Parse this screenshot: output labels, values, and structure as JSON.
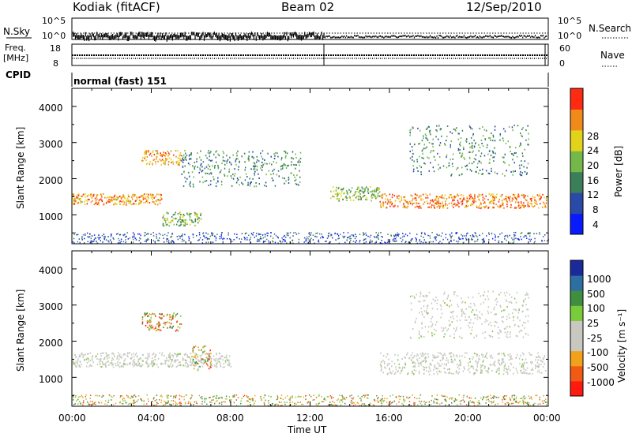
{
  "header": {
    "station": "Kodiak (fitACF)",
    "beam": "Beam 02",
    "date": "12/Sep/2010"
  },
  "nsky_panel": {
    "left_label": "N.Sky",
    "left_ticks": [
      "10^5",
      "10^0"
    ],
    "right_ticks": [
      "10^5",
      "10^0"
    ],
    "right_label": "N.Search"
  },
  "freq_panel": {
    "left_label_1": "Freq.",
    "left_label_2": "[MHz]",
    "left_ticks": [
      "18",
      "8"
    ],
    "right_ticks": [
      "60",
      "0"
    ],
    "right_label": "Nave"
  },
  "cpid_panel": {
    "label": "CPID",
    "mode": "normal (fast) 151"
  },
  "x_axis": {
    "ticks": [
      "00:00",
      "04:00",
      "08:00",
      "12:00",
      "16:00",
      "20:00",
      "00:00"
    ],
    "label": "Time UT"
  },
  "power_panel": {
    "ylabel": "Slant Range [km]",
    "yticks": [
      "4000",
      "3000",
      "2000",
      "1000"
    ],
    "colorbar_label": "Power [dB]",
    "colorbar_ticks": [
      "28",
      "24",
      "20",
      "16",
      "12",
      "8",
      "4"
    ],
    "colors": [
      "#0a1aff",
      "#2a4aa8",
      "#3a7f5a",
      "#74b84a",
      "#e2d21a",
      "#f08a1a",
      "#ff2a12"
    ]
  },
  "velocity_panel": {
    "ylabel": "Slant Range [km]",
    "yticks": [
      "4000",
      "3000",
      "2000",
      "1000"
    ],
    "colorbar_label": "Velocity [m s⁻¹]",
    "colorbar_ticks": [
      "1000",
      "500",
      "100",
      "25",
      "-25",
      "-100",
      "-500",
      "-1000"
    ],
    "colors": [
      "#1a2a9a",
      "#2d6fa0",
      "#3f8f3f",
      "#7acb3a",
      "#c8c8c0",
      "#c8c8c0",
      "#f2a21a",
      "#f05a14",
      "#ff1a10"
    ]
  },
  "chart_data": [
    {
      "type": "heatmap",
      "title": "Power",
      "xlabel": "Time UT",
      "ylabel": "Slant Range [km]",
      "x_range": [
        "00:00",
        "24:00"
      ],
      "ylim": [
        200,
        4500
      ],
      "colorbar": {
        "label": "Power [dB]",
        "range": [
          0,
          32
        ],
        "ticks": [
          4,
          8,
          12,
          16,
          20,
          24,
          28
        ]
      },
      "features": [
        {
          "t_start": 0.0,
          "t_end": 4.5,
          "r_lo": 1300,
          "r_hi": 1600,
          "power_db": 24
        },
        {
          "t_start": 3.5,
          "t_end": 5.5,
          "r_lo": 2400,
          "r_hi": 2800,
          "power_db": 24
        },
        {
          "t_start": 5.5,
          "t_end": 11.5,
          "r_lo": 1800,
          "r_hi": 2800,
          "power_db": 12
        },
        {
          "t_start": 4.5,
          "t_end": 6.5,
          "r_lo": 700,
          "r_hi": 1100,
          "power_db": 16
        },
        {
          "t_start": 13.0,
          "t_end": 15.5,
          "r_lo": 1400,
          "r_hi": 1800,
          "power_db": 16
        },
        {
          "t_start": 15.5,
          "t_end": 23.9,
          "r_lo": 1200,
          "r_hi": 1600,
          "power_db": 26
        },
        {
          "t_start": 17.0,
          "t_end": 23.0,
          "r_lo": 2100,
          "r_hi": 3500,
          "power_db": 12
        }
      ]
    },
    {
      "type": "heatmap",
      "title": "Velocity",
      "xlabel": "Time UT",
      "ylabel": "Slant Range [km]",
      "x_range": [
        "00:00",
        "24:00"
      ],
      "ylim": [
        200,
        4500
      ],
      "colorbar": {
        "label": "Velocity [m s-1]",
        "range": [
          -1000,
          1000
        ],
        "ticks": [
          1000,
          500,
          100,
          25,
          -25,
          -100,
          -500,
          -1000
        ]
      },
      "features": [
        {
          "t_start": 0.0,
          "t_end": 8.0,
          "r_lo": 1300,
          "r_hi": 1700,
          "velocity": 0
        },
        {
          "t_start": 3.5,
          "t_end": 5.5,
          "r_lo": 2300,
          "r_hi": 2800,
          "velocity": -300
        },
        {
          "t_start": 6.0,
          "t_end": 7.0,
          "r_lo": 1200,
          "r_hi": 1900,
          "velocity": -500
        },
        {
          "t_start": 15.5,
          "t_end": 23.9,
          "r_lo": 1100,
          "r_hi": 1700,
          "velocity": 0
        },
        {
          "t_start": 17.0,
          "t_end": 23.0,
          "r_lo": 2100,
          "r_hi": 3400,
          "velocity": 0
        }
      ]
    }
  ]
}
